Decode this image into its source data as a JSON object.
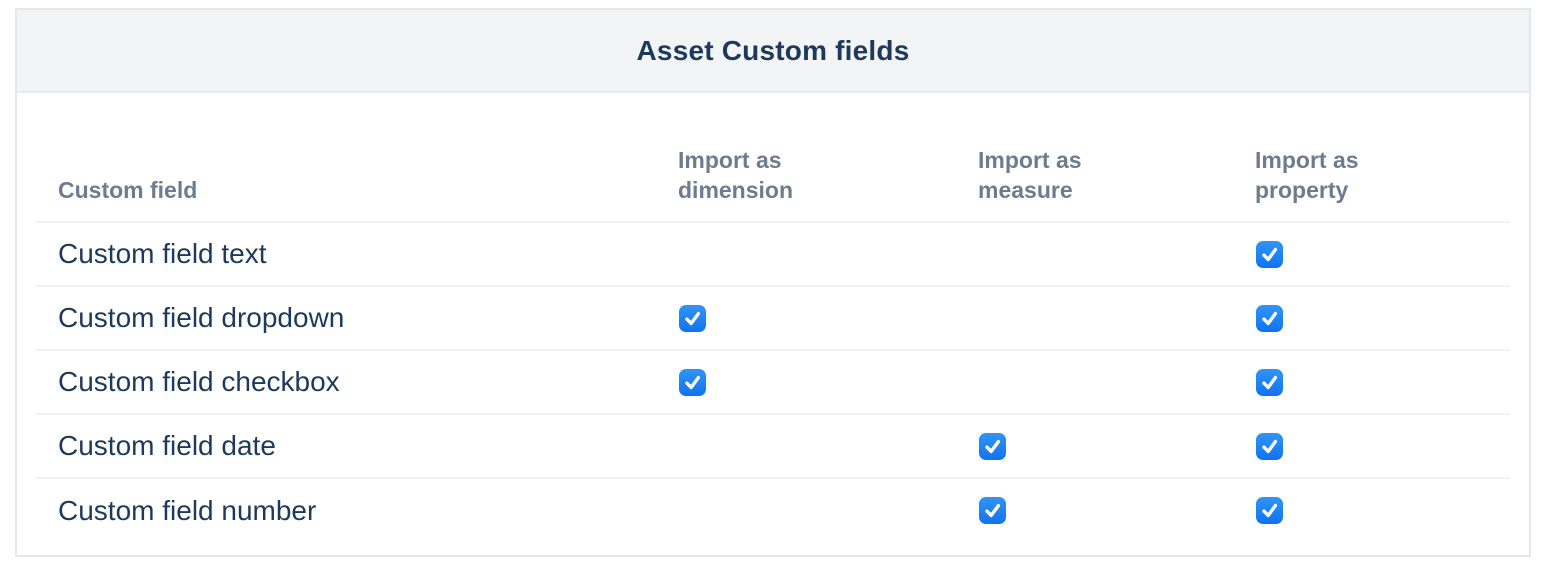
{
  "card": {
    "title": "Asset Custom fields"
  },
  "table": {
    "columns": [
      {
        "key": "name",
        "label": "Custom field"
      },
      {
        "key": "dimension",
        "label": "Import as dimension"
      },
      {
        "key": "measure",
        "label": "Import as measure"
      },
      {
        "key": "property",
        "label": "Import as property"
      }
    ],
    "rows": [
      {
        "name": "Custom field text",
        "dimension": false,
        "measure": false,
        "property": true
      },
      {
        "name": "Custom field dropdown",
        "dimension": true,
        "measure": false,
        "property": true
      },
      {
        "name": "Custom field checkbox",
        "dimension": true,
        "measure": false,
        "property": true
      },
      {
        "name": "Custom field date",
        "dimension": false,
        "measure": true,
        "property": true
      },
      {
        "name": "Custom field number",
        "dimension": false,
        "measure": true,
        "property": true
      }
    ]
  },
  "icons": {
    "checked": "checkmark-icon"
  },
  "colors": {
    "checkbox_blue_top": "#3095f6",
    "checkbox_blue_bottom": "#1173ee",
    "title_text": "#1d3a5c",
    "body_text": "#1d3a5c",
    "header_text": "#6e7c90",
    "card_header_bg": "#f3f4f6",
    "card_border": "#e6e7eb",
    "row_divider": "#f1f2f4",
    "checkmark": "#ffffff"
  }
}
